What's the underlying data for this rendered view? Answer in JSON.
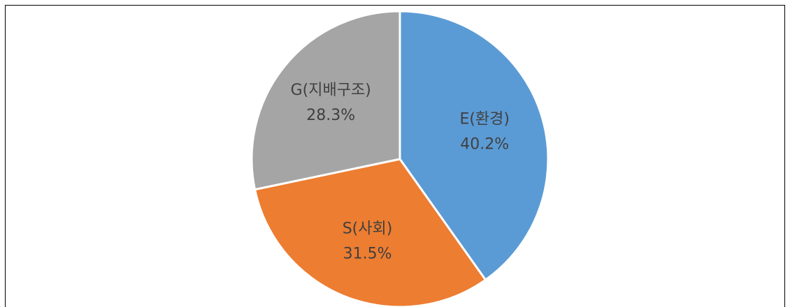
{
  "chart_data": {
    "type": "pie",
    "categories": [
      "E(환경)",
      "S(사회)",
      "G(지배구조)"
    ],
    "values": [
      40.2,
      31.5,
      28.3
    ],
    "value_labels": [
      "40.2%",
      "31.5%",
      "28.3%"
    ],
    "colors": [
      "#5b9bd5",
      "#ed7d31",
      "#a5a5a5"
    ]
  }
}
